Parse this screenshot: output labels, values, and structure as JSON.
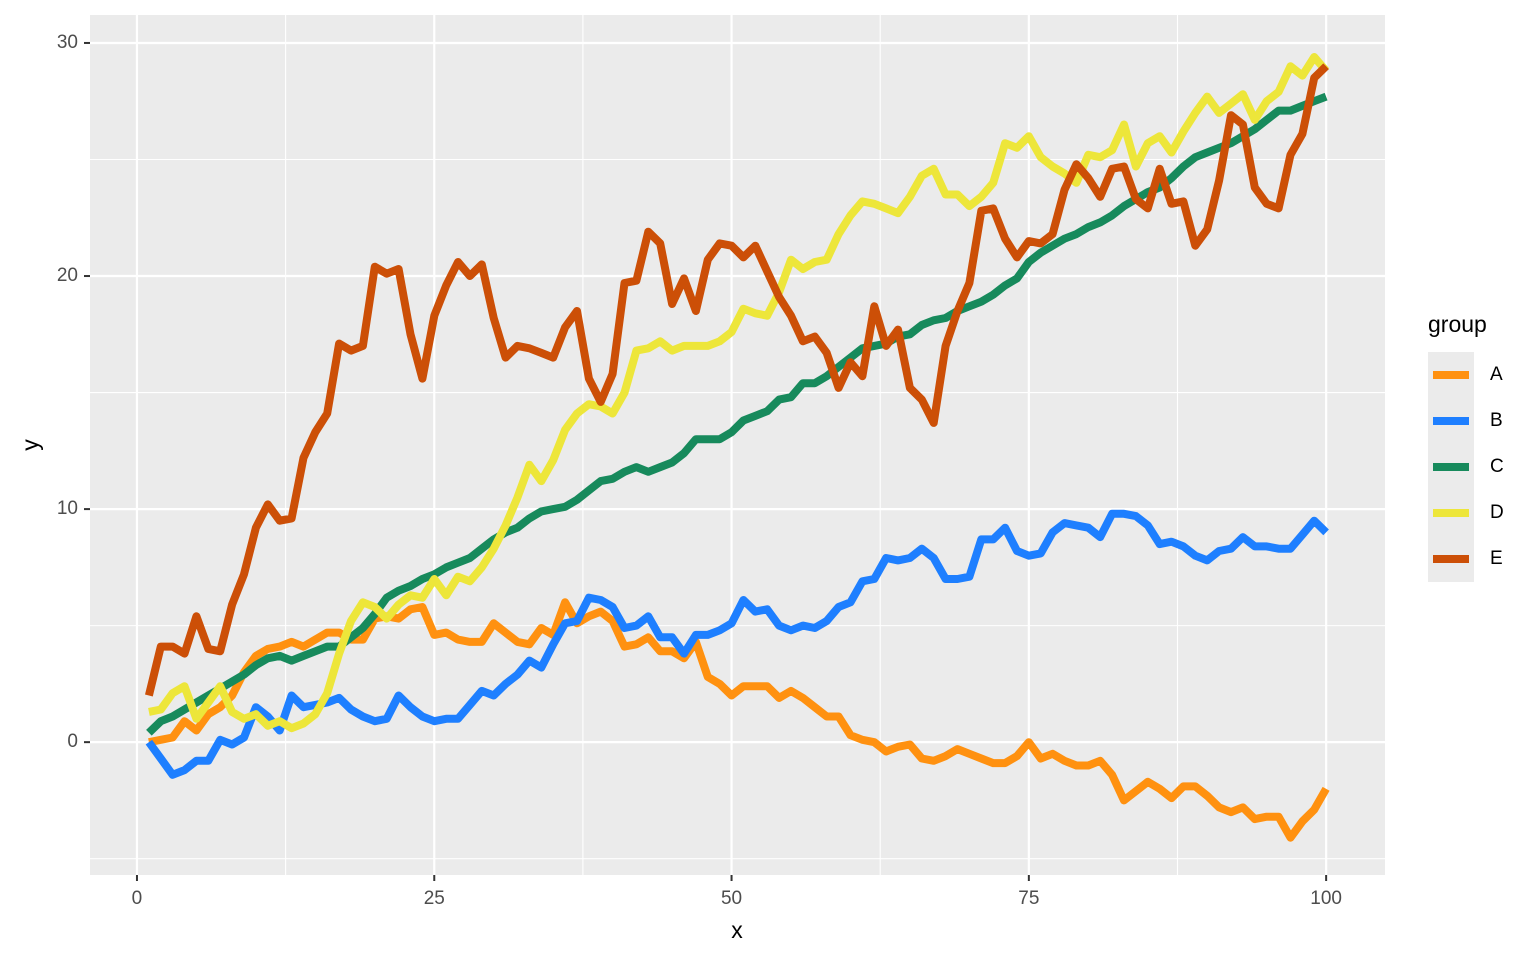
{
  "chart_data": {
    "type": "line",
    "x_label": "x",
    "y_label": "y",
    "legend_title": "group",
    "legend_position": "right",
    "grid": true,
    "xlim": [
      -3.95,
      104.95
    ],
    "ylim": [
      -5.7,
      31.2
    ],
    "xticks": [
      0,
      25,
      50,
      75,
      100
    ],
    "yticks": [
      0,
      10,
      20,
      30
    ],
    "x_minor_ticks": [
      12.5,
      37.5,
      62.5,
      87.5
    ],
    "y_minor_ticks": [
      -5,
      5,
      15,
      25
    ],
    "x": [
      1,
      2,
      3,
      4,
      5,
      6,
      7,
      8,
      9,
      10,
      11,
      12,
      13,
      14,
      15,
      16,
      17,
      18,
      19,
      20,
      21,
      22,
      23,
      24,
      25,
      26,
      27,
      28,
      29,
      30,
      31,
      32,
      33,
      34,
      35,
      36,
      37,
      38,
      39,
      40,
      41,
      42,
      43,
      44,
      45,
      46,
      47,
      48,
      49,
      50,
      51,
      52,
      53,
      54,
      55,
      56,
      57,
      58,
      59,
      60,
      61,
      62,
      63,
      64,
      65,
      66,
      67,
      68,
      69,
      70,
      71,
      72,
      73,
      74,
      75,
      76,
      77,
      78,
      79,
      80,
      81,
      82,
      83,
      84,
      85,
      86,
      87,
      88,
      89,
      90,
      91,
      92,
      93,
      94,
      95,
      96,
      97,
      98,
      99,
      100
    ],
    "series": [
      {
        "name": "A",
        "color": "#ff9110",
        "values": [
          0.0,
          0.1,
          0.2,
          0.9,
          0.5,
          1.2,
          1.5,
          2.0,
          3.0,
          3.7,
          4.0,
          4.1,
          4.3,
          4.1,
          4.4,
          4.7,
          4.7,
          4.4,
          4.4,
          5.3,
          5.4,
          5.3,
          5.7,
          5.8,
          4.6,
          4.7,
          4.4,
          4.3,
          4.3,
          5.1,
          4.7,
          4.3,
          4.2,
          4.9,
          4.6,
          6.0,
          5.1,
          5.4,
          5.6,
          5.2,
          4.1,
          4.2,
          4.5,
          3.9,
          3.9,
          3.6,
          4.3,
          2.8,
          2.5,
          2.0,
          2.4,
          2.4,
          2.4,
          1.9,
          2.2,
          1.9,
          1.5,
          1.1,
          1.1,
          0.3,
          0.1,
          0.0,
          -0.4,
          -0.2,
          -0.1,
          -0.7,
          -0.8,
          -0.6,
          -0.3,
          -0.5,
          -0.7,
          -0.9,
          -0.9,
          -0.6,
          0.0,
          -0.7,
          -0.5,
          -0.8,
          -1.0,
          -1.0,
          -0.8,
          -1.4,
          -2.5,
          -2.1,
          -1.7,
          -2.0,
          -2.4,
          -1.9,
          -1.9,
          -2.3,
          -2.8,
          -3.0,
          -2.8,
          -3.3,
          -3.2,
          -3.2,
          -4.1,
          -3.4,
          -2.9,
          -2.0
        ]
      },
      {
        "name": "B",
        "color": "#1e7fff",
        "values": [
          0.0,
          -0.7,
          -1.4,
          -1.2,
          -0.8,
          -0.8,
          0.1,
          -0.1,
          0.2,
          1.5,
          1.1,
          0.5,
          2.0,
          1.5,
          1.6,
          1.7,
          1.9,
          1.4,
          1.1,
          0.9,
          1.0,
          2.0,
          1.5,
          1.1,
          0.9,
          1.0,
          1.0,
          1.6,
          2.2,
          2.0,
          2.5,
          2.9,
          3.5,
          3.2,
          4.2,
          5.1,
          5.2,
          6.2,
          6.1,
          5.8,
          4.9,
          5.0,
          5.4,
          4.5,
          4.5,
          3.8,
          4.6,
          4.6,
          4.8,
          5.1,
          6.1,
          5.6,
          5.7,
          5.0,
          4.8,
          5.0,
          4.9,
          5.2,
          5.8,
          6.0,
          6.9,
          7.0,
          7.9,
          7.8,
          7.9,
          8.3,
          7.9,
          7.0,
          7.0,
          7.1,
          8.7,
          8.7,
          9.2,
          8.2,
          8.0,
          8.1,
          9.0,
          9.4,
          9.3,
          9.2,
          8.8,
          9.8,
          9.8,
          9.7,
          9.3,
          8.5,
          8.6,
          8.4,
          8.0,
          7.8,
          8.2,
          8.3,
          8.8,
          8.4,
          8.4,
          8.3,
          8.3,
          8.9,
          9.5,
          9.0
        ]
      },
      {
        "name": "C",
        "color": "#178a5c",
        "values": [
          0.4,
          0.9,
          1.1,
          1.4,
          1.7,
          2.0,
          2.3,
          2.6,
          2.9,
          3.3,
          3.6,
          3.7,
          3.5,
          3.7,
          3.9,
          4.1,
          4.1,
          4.5,
          4.9,
          5.5,
          6.2,
          6.5,
          6.7,
          7.0,
          7.2,
          7.5,
          7.7,
          7.9,
          8.3,
          8.7,
          9.0,
          9.2,
          9.6,
          9.9,
          10.0,
          10.1,
          10.4,
          10.8,
          11.2,
          11.3,
          11.6,
          11.8,
          11.6,
          11.8,
          12.0,
          12.4,
          13.0,
          13.0,
          13.0,
          13.3,
          13.8,
          14.0,
          14.2,
          14.7,
          14.8,
          15.4,
          15.4,
          15.7,
          16.1,
          16.5,
          16.9,
          17.0,
          17.1,
          17.4,
          17.5,
          17.9,
          18.1,
          18.2,
          18.5,
          18.7,
          18.9,
          19.2,
          19.6,
          19.9,
          20.6,
          21.0,
          21.3,
          21.6,
          21.8,
          22.1,
          22.3,
          22.6,
          23.0,
          23.3,
          23.6,
          23.8,
          24.2,
          24.7,
          25.1,
          25.3,
          25.5,
          25.7,
          26.0,
          26.3,
          26.7,
          27.1,
          27.1,
          27.3,
          27.5,
          27.7
        ]
      },
      {
        "name": "D",
        "color": "#ede63a",
        "values": [
          1.3,
          1.4,
          2.1,
          2.4,
          1.0,
          1.7,
          2.4,
          1.3,
          1.0,
          1.2,
          0.7,
          0.9,
          0.6,
          0.8,
          1.2,
          2.1,
          3.8,
          5.2,
          6.0,
          5.8,
          5.3,
          5.9,
          6.3,
          6.2,
          7.0,
          6.3,
          7.1,
          6.9,
          7.5,
          8.3,
          9.3,
          10.5,
          11.9,
          11.2,
          12.1,
          13.4,
          14.1,
          14.5,
          14.4,
          14.1,
          15.0,
          16.8,
          16.9,
          17.2,
          16.8,
          17.0,
          17.0,
          17.0,
          17.2,
          17.6,
          18.6,
          18.4,
          18.3,
          19.3,
          20.7,
          20.3,
          20.6,
          20.7,
          21.8,
          22.6,
          23.2,
          23.1,
          22.9,
          22.7,
          23.4,
          24.3,
          24.6,
          23.5,
          23.5,
          23.0,
          23.4,
          24.0,
          25.7,
          25.5,
          26.0,
          25.1,
          24.7,
          24.4,
          24.0,
          25.2,
          25.1,
          25.4,
          26.5,
          24.7,
          25.7,
          26.0,
          25.3,
          26.2,
          27.0,
          27.7,
          27.0,
          27.4,
          27.8,
          26.7,
          27.5,
          27.9,
          29.0,
          28.6,
          29.4,
          28.8
        ]
      },
      {
        "name": "E",
        "color": "#cc4f07",
        "values": [
          2.0,
          4.1,
          4.1,
          3.8,
          5.4,
          4.0,
          3.9,
          5.9,
          7.2,
          9.2,
          10.2,
          9.5,
          9.6,
          12.2,
          13.3,
          14.1,
          17.1,
          16.8,
          17.0,
          20.4,
          20.1,
          20.3,
          17.5,
          15.6,
          18.3,
          19.6,
          20.6,
          20.0,
          20.5,
          18.2,
          16.5,
          17.0,
          16.9,
          16.7,
          16.5,
          17.8,
          18.5,
          15.6,
          14.6,
          15.8,
          19.7,
          19.8,
          21.9,
          21.4,
          18.8,
          19.9,
          18.5,
          20.7,
          21.4,
          21.3,
          20.8,
          21.3,
          20.2,
          19.1,
          18.3,
          17.2,
          17.4,
          16.7,
          15.2,
          16.3,
          15.7,
          18.7,
          17.0,
          17.7,
          15.2,
          14.7,
          13.7,
          17.0,
          18.5,
          19.7,
          22.8,
          22.9,
          21.6,
          20.8,
          21.5,
          21.4,
          21.8,
          23.7,
          24.8,
          24.2,
          23.4,
          24.6,
          24.7,
          23.3,
          22.9,
          24.6,
          23.1,
          23.2,
          21.3,
          22.0,
          24.1,
          26.9,
          26.5,
          23.8,
          23.1,
          22.9,
          25.2,
          26.1,
          28.5,
          29.0
        ]
      }
    ]
  }
}
